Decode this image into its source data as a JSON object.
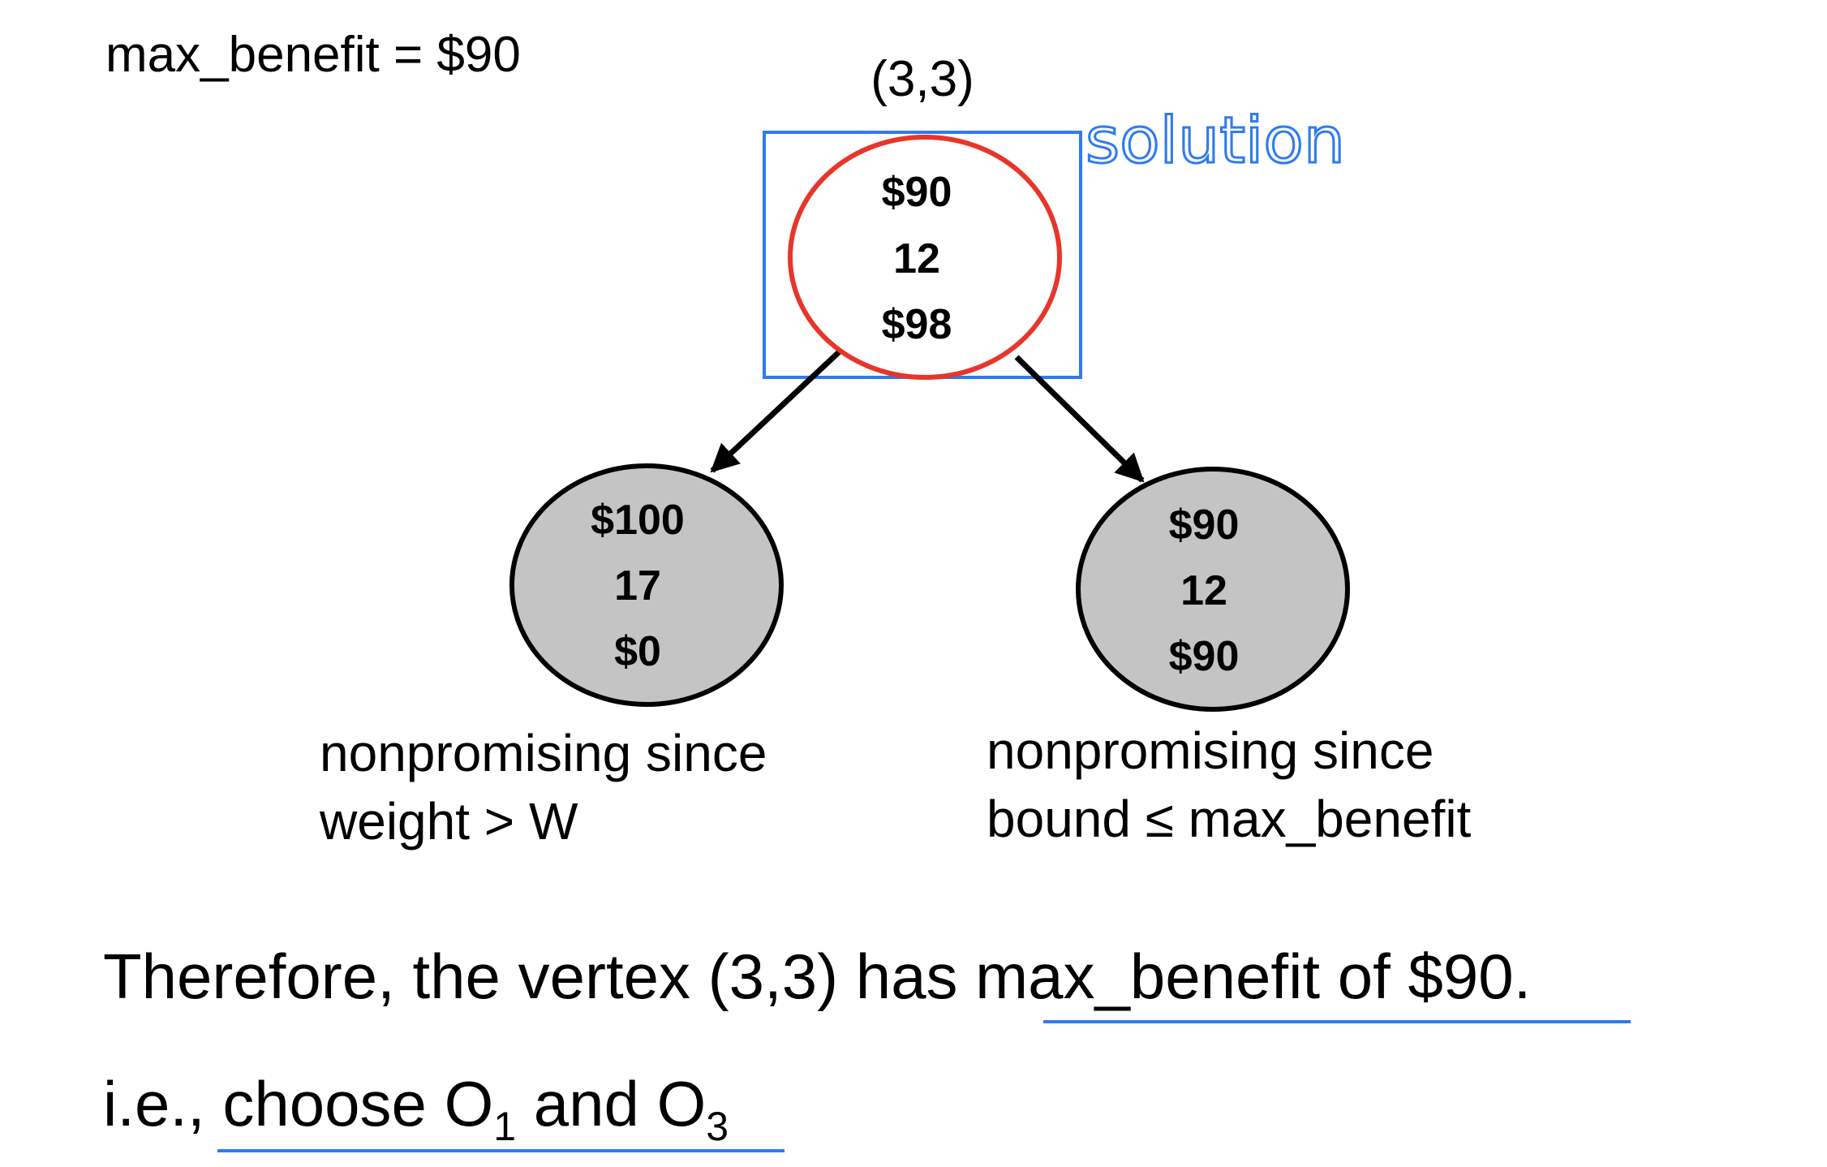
{
  "header": {
    "max_benefit_text": "max_benefit = $90"
  },
  "colors": {
    "solution_box": "#2f7bef",
    "solution_node_border": "#e8352a",
    "pruned_node_fill": "#c4c4c4",
    "underline": "#2f7bef"
  },
  "root": {
    "label": "(3,3)",
    "values": [
      "$90",
      "12",
      "$98"
    ],
    "annotation": "solution"
  },
  "children": [
    {
      "values": [
        "$100",
        "17",
        "$0"
      ],
      "note": [
        "nonpromising since",
        "weight > W"
      ]
    },
    {
      "values": [
        "$90",
        "12",
        "$90"
      ],
      "note": [
        "nonpromising since",
        "bound ≤ max_benefit"
      ]
    }
  ],
  "conclusion": {
    "line1_prefix": "Therefore, the vertex (3,3) has ",
    "line1_underlined": "max_benefit of $90",
    "line1_suffix": ".",
    "line2_prefix": "i.e., ",
    "line2_choose": "choose O",
    "line2_sub1": "1",
    "line2_and": " and O",
    "line2_sub3": "3"
  }
}
